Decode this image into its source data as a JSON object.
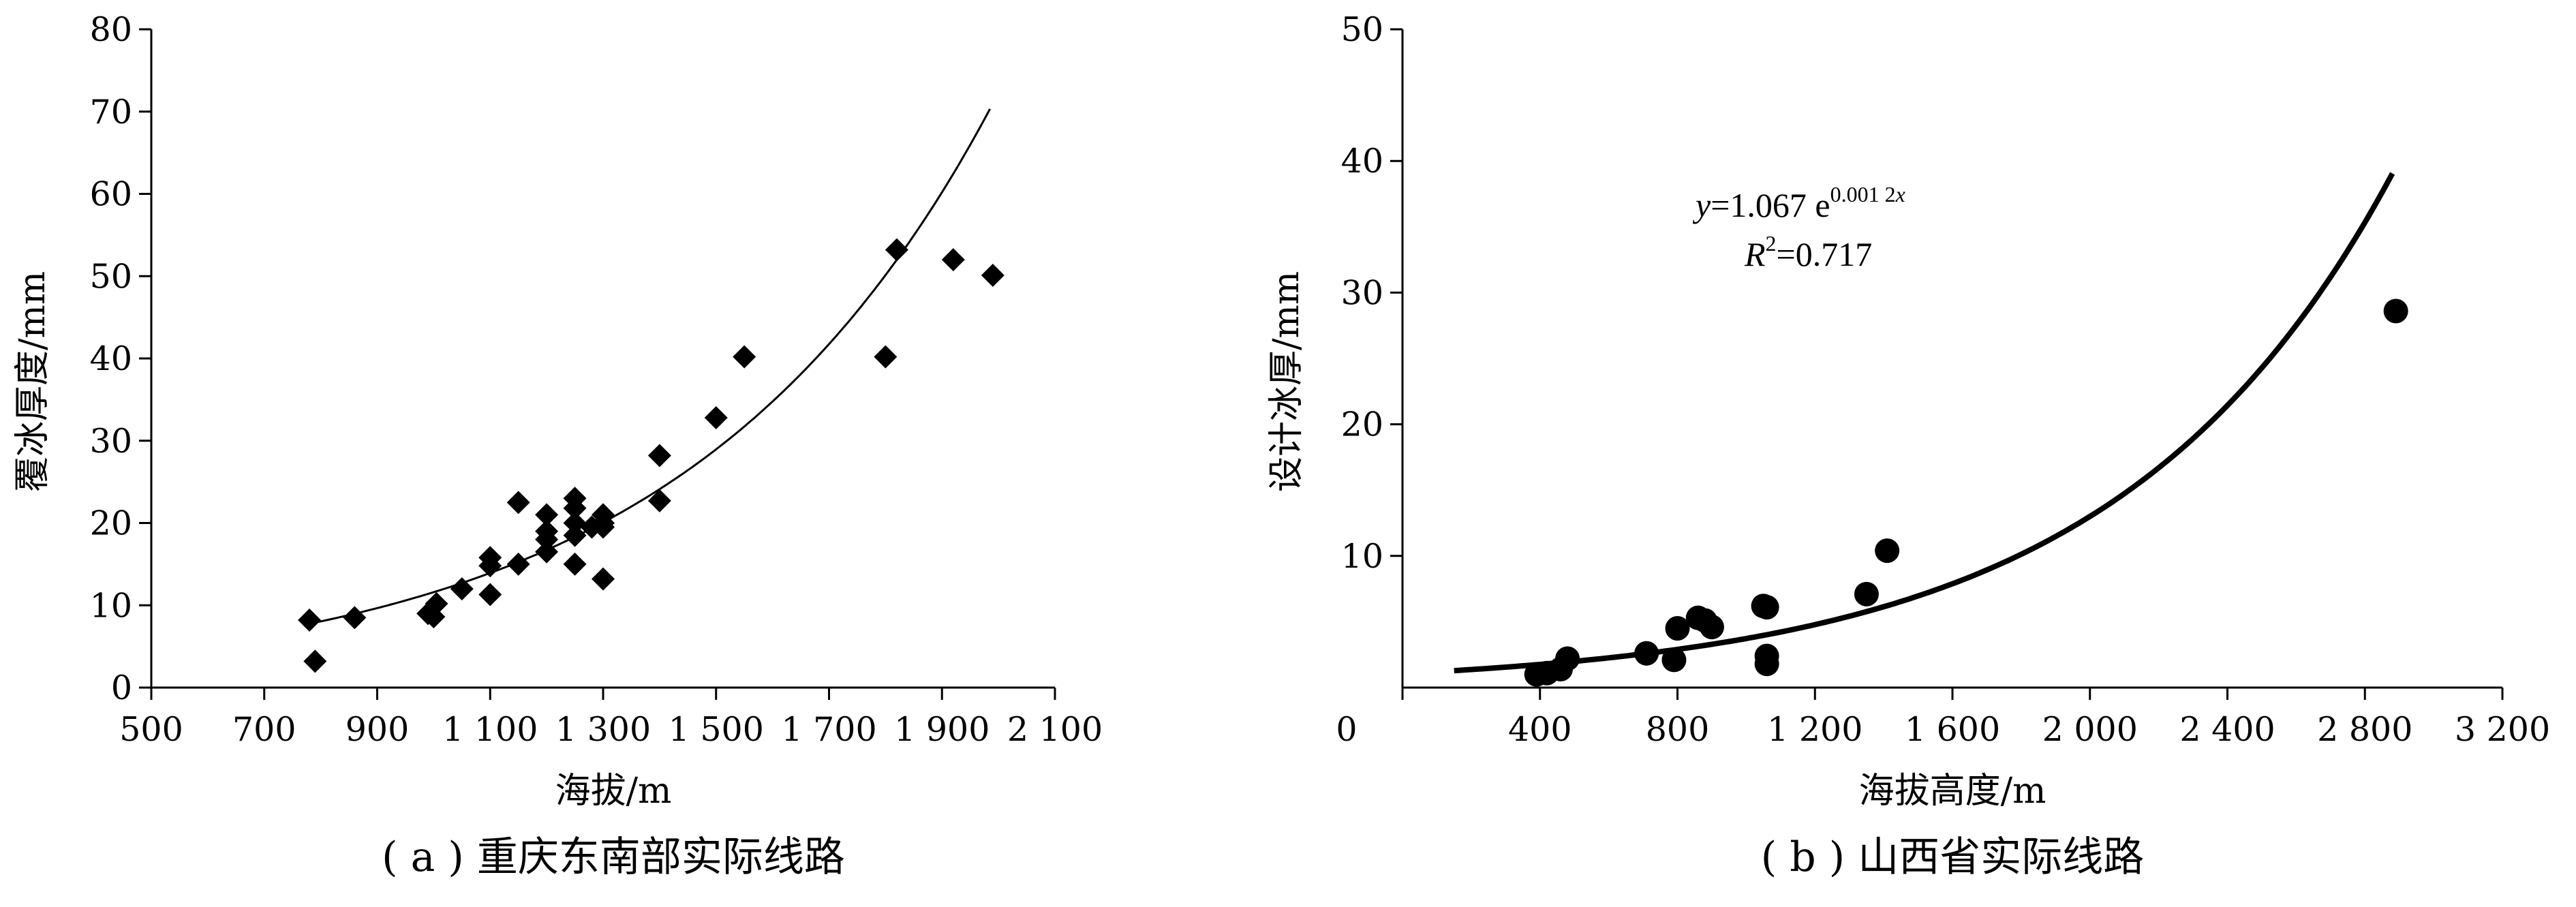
{
  "chart_data": [
    {
      "type": "scatter",
      "caption": "( a ) 重庆东南部实际线路",
      "xlabel": "海拔/m",
      "ylabel": "覆冰厚度/mm",
      "xlim": [
        500,
        2100
      ],
      "ylim": [
        0,
        80
      ],
      "xticks": [
        500,
        700,
        900,
        1100,
        1300,
        1500,
        1700,
        1900,
        2100
      ],
      "xtick_labels": [
        "500",
        "700",
        "900",
        "1 100",
        "1 300",
        "1 500",
        "1 700",
        "1 900",
        "2 100"
      ],
      "yticks": [
        0,
        10,
        20,
        30,
        40,
        50,
        60,
        70,
        80
      ],
      "ytick_labels": [
        "0",
        "10",
        "20",
        "30",
        "40",
        "50",
        "60",
        "70",
        "80"
      ],
      "marker": "diamond",
      "series": [
        {
          "points": [
            [
              780,
              8.2
            ],
            [
              790,
              3.2
            ],
            [
              860,
              8.5
            ],
            [
              990,
              9
            ],
            [
              1000,
              8.6
            ],
            [
              1005,
              10.2
            ],
            [
              1050,
              12
            ],
            [
              1100,
              15.8
            ],
            [
              1100,
              14.8
            ],
            [
              1100,
              11.3
            ],
            [
              1150,
              22.5
            ],
            [
              1150,
              15
            ],
            [
              1200,
              21
            ],
            [
              1200,
              19
            ],
            [
              1200,
              18
            ],
            [
              1200,
              16.5
            ],
            [
              1250,
              23
            ],
            [
              1250,
              21.8
            ],
            [
              1250,
              20
            ],
            [
              1250,
              18.5
            ],
            [
              1250,
              15
            ],
            [
              1280,
              19.5
            ],
            [
              1300,
              21
            ],
            [
              1300,
              20
            ],
            [
              1300,
              19.5
            ],
            [
              1300,
              13.2
            ],
            [
              1400,
              28.2
            ],
            [
              1400,
              22.7
            ],
            [
              1500,
              32.8
            ],
            [
              1550,
              40.2
            ],
            [
              1800,
              40.2
            ],
            [
              1820,
              53.2
            ],
            [
              1920,
              52
            ],
            [
              1990,
              50.1
            ]
          ]
        }
      ],
      "fit": {
        "type": "exponential",
        "a": 1.86,
        "b": 0.00183,
        "x_range": [
          780,
          1985
        ]
      },
      "grid": false
    },
    {
      "type": "scatter",
      "caption": "( b ) 山西省实际线路",
      "xlabel": "海拔高度/m",
      "ylabel": "设计冰厚/mm",
      "xlim": [
        0,
        3200
      ],
      "ylim": [
        0,
        50
      ],
      "xticks": [
        0,
        400,
        800,
        1200,
        1600,
        2000,
        2400,
        2800,
        3200
      ],
      "xtick_labels": [
        "0",
        "400",
        "800",
        "1 200",
        "1 600",
        "2 000",
        "2 400",
        "2 800",
        "3 200"
      ],
      "yticks": [
        10,
        20,
        30,
        40,
        50
      ],
      "ytick_labels": [
        "10",
        "20",
        "30",
        "40",
        "50"
      ],
      "marker": "circle",
      "series": [
        {
          "points": [
            [
              390,
              1
            ],
            [
              420,
              1.1
            ],
            [
              460,
              1.4
            ],
            [
              480,
              2.2
            ],
            [
              710,
              2.6
            ],
            [
              790,
              2.1
            ],
            [
              800,
              4.5
            ],
            [
              860,
              5.3
            ],
            [
              880,
              5.1
            ],
            [
              900,
              4.6
            ],
            [
              1050,
              6.2
            ],
            [
              1060,
              6.1
            ],
            [
              1060,
              2.4
            ],
            [
              1060,
              1.8
            ],
            [
              1350,
              7.1
            ],
            [
              1410,
              10.4
            ],
            [
              2890,
              28.6
            ]
          ]
        }
      ],
      "fit": {
        "type": "exponential",
        "a": 1.067,
        "b": 0.00125,
        "x_range": [
          150,
          2880
        ]
      },
      "equation": {
        "y_var": "y",
        "y_rest": "=1.067 e",
        "y_exp": "0.001 2",
        "y_exp_var": "x",
        "r_var": "R",
        "r_sup": "2",
        "r_rest": "=0.717"
      },
      "grid": false
    }
  ]
}
